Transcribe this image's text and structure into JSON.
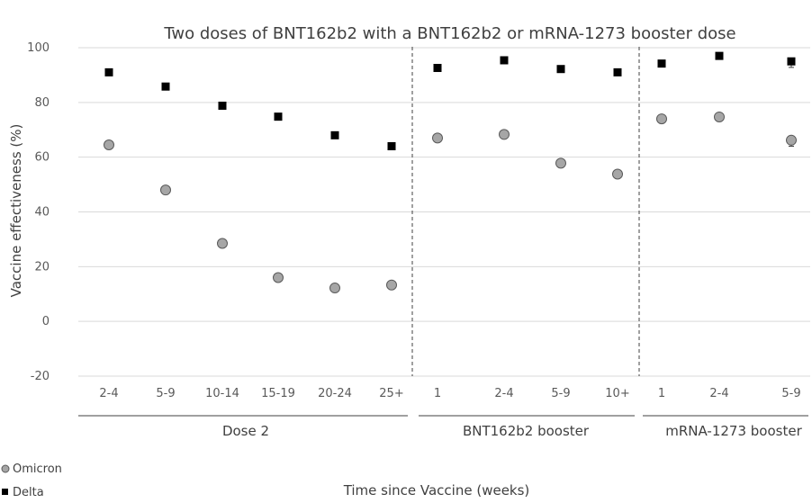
{
  "chart_data": {
    "type": "scatter",
    "title": "Two doses of BNT162b2 with a BNT162b2 or mRNA-1273 booster dose",
    "xlabel": "Time since Vaccine (weeks)",
    "ylabel": "Vaccine effectiveness (%)",
    "ylim": [
      -20,
      100
    ],
    "yticks": [
      -20,
      0,
      20,
      40,
      60,
      80,
      100
    ],
    "grid": true,
    "legend_position": "bottom-left",
    "categories": [
      "2-4",
      "5-9",
      "10-14",
      "15-19",
      "20-24",
      "25+",
      "1",
      "2-4",
      "5-9",
      "10+",
      "1",
      "2-4",
      "5-9"
    ],
    "groups": [
      {
        "label": "Dose 2",
        "count": 6
      },
      {
        "label": "BNT162b2 booster",
        "count": 4
      },
      {
        "label": "mRNA-1273 booster",
        "count": 3
      }
    ],
    "series": [
      {
        "name": "Omicron",
        "marker": "circle",
        "color": "#a6a6a6",
        "values": [
          64.5,
          48,
          28.5,
          16,
          12.2,
          13.3,
          67,
          68.3,
          57.8,
          53.8,
          74,
          74.7,
          66.2
        ],
        "err_low": [
          63,
          46.6,
          27.6,
          15.2,
          11.4,
          11.8,
          66.3,
          67.6,
          57,
          53,
          73.3,
          73.8,
          64
        ]
      },
      {
        "name": "Delta",
        "marker": "square",
        "color": "#000000",
        "values": [
          91,
          85.8,
          78.8,
          74.8,
          68,
          64,
          92.6,
          95.4,
          92.2,
          91,
          94.2,
          97,
          95
        ],
        "err_low": [
          90.2,
          85,
          78,
          74,
          67.2,
          63.2,
          91.8,
          94.6,
          91.4,
          90.2,
          93.4,
          96.2,
          92.8
        ]
      }
    ]
  }
}
